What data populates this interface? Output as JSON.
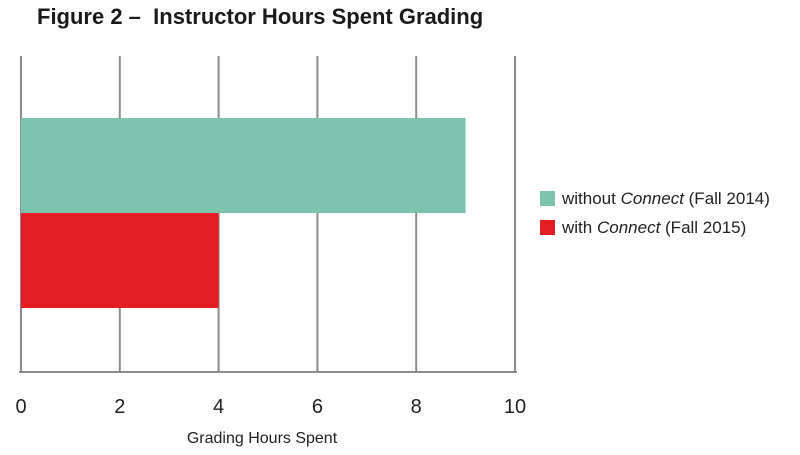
{
  "chart_data": {
    "type": "bar",
    "orientation": "horizontal",
    "title": "Figure 2 –  Instructor Hours Spent Grading",
    "xlabel": "Grading Hours Spent",
    "ylabel": "",
    "xlim": [
      0,
      10
    ],
    "xticks": [
      "0",
      "2",
      "4",
      "6",
      "8",
      "10"
    ],
    "grid": true,
    "legend_position": "right",
    "series": [
      {
        "name_parts": [
          "without ",
          "Connect",
          " (Fall 2014)"
        ],
        "value": 9,
        "color": "#7cc4ae"
      },
      {
        "name_parts": [
          "with ",
          "Connect",
          " (Fall 2015)"
        ],
        "value": 4,
        "color": "#e31e25"
      }
    ]
  }
}
